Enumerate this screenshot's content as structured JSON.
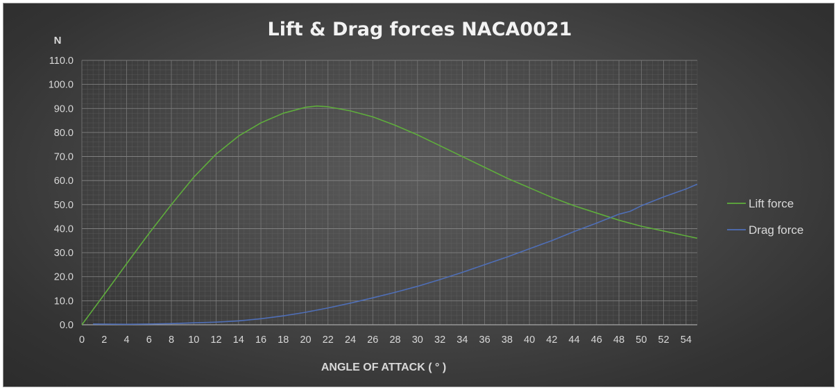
{
  "chart_data": {
    "type": "line",
    "title": "Lift & Drag forces NACA0021",
    "ylabel": "N",
    "xlabel": "ANGLE OF ATTACK ( ° )",
    "xlim": [
      0,
      55
    ],
    "ylim": [
      0,
      110
    ],
    "x_ticks": [
      "0",
      "2",
      "4",
      "6",
      "8",
      "10",
      "12",
      "14",
      "16",
      "18",
      "20",
      "22",
      "24",
      "26",
      "28",
      "30",
      "32",
      "34",
      "36",
      "38",
      "40",
      "42",
      "44",
      "46",
      "48",
      "50",
      "52",
      "54"
    ],
    "y_ticks": [
      "0.0",
      "10.0",
      "20.0",
      "30.0",
      "40.0",
      "50.0",
      "60.0",
      "70.0",
      "80.0",
      "90.0",
      "100.0",
      "110.0"
    ],
    "grid": true,
    "legend_position": "right",
    "series": [
      {
        "name": "Lift force",
        "color": "#5fae3c",
        "points": [
          [
            0,
            0
          ],
          [
            2,
            12.6
          ],
          [
            4,
            25.4
          ],
          [
            6,
            38
          ],
          [
            8,
            50
          ],
          [
            10,
            61.4
          ],
          [
            12,
            71
          ],
          [
            14,
            78.5
          ],
          [
            16,
            84
          ],
          [
            18,
            88
          ],
          [
            20,
            90.5
          ],
          [
            21,
            91
          ],
          [
            22,
            90.7
          ],
          [
            24,
            89
          ],
          [
            26,
            86.5
          ],
          [
            28,
            83
          ],
          [
            30,
            79
          ],
          [
            32,
            74.5
          ],
          [
            34,
            70
          ],
          [
            36,
            65.5
          ],
          [
            38,
            61
          ],
          [
            40,
            57
          ],
          [
            42,
            53
          ],
          [
            44,
            49.5
          ],
          [
            46,
            46.5
          ],
          [
            48,
            43.5
          ],
          [
            50,
            41
          ],
          [
            52,
            39
          ],
          [
            54,
            37
          ],
          [
            55,
            36
          ]
        ]
      },
      {
        "name": "Drag force",
        "color": "#4f6fb8",
        "points": [
          [
            1,
            0.3
          ],
          [
            4,
            0.2
          ],
          [
            6,
            0.3
          ],
          [
            8,
            0.5
          ],
          [
            10,
            0.8
          ],
          [
            12,
            1.1
          ],
          [
            14,
            1.6
          ],
          [
            16,
            2.5
          ],
          [
            18,
            3.7
          ],
          [
            20,
            5.2
          ],
          [
            22,
            7
          ],
          [
            24,
            9
          ],
          [
            26,
            11.2
          ],
          [
            28,
            13.5
          ],
          [
            30,
            16
          ],
          [
            32,
            18.8
          ],
          [
            34,
            21.8
          ],
          [
            36,
            25
          ],
          [
            38,
            28.2
          ],
          [
            40,
            31.6
          ],
          [
            42,
            35
          ],
          [
            44,
            38.8
          ],
          [
            46,
            42.3
          ],
          [
            48,
            46
          ],
          [
            49,
            47.2
          ],
          [
            50,
            49.5
          ],
          [
            52,
            53.2
          ],
          [
            54,
            56.5
          ],
          [
            55,
            58.5
          ]
        ]
      }
    ]
  }
}
